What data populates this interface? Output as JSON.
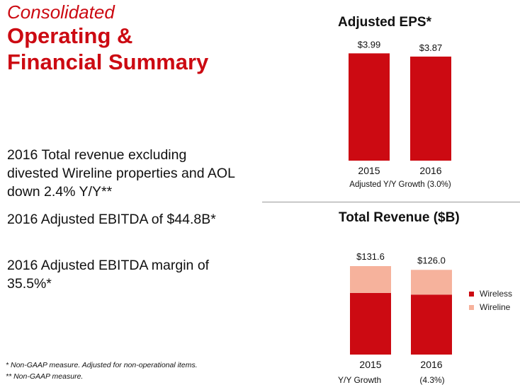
{
  "header": {
    "subtitle": "Consolidated",
    "title_line1": "Operating &",
    "title_line2": "Financial Summary"
  },
  "bullets": [
    "2016 Total revenue excluding divested Wireline properties and AOL down 2.4% Y/Y**",
    "2016 Adjusted EBITDA of $44.8B*",
    "2016 Adjusted EBITDA margin of 35.5%*"
  ],
  "footnotes": [
    "* Non-GAAP measure.  Adjusted for non-operational items.",
    "** Non-GAAP measure."
  ],
  "colors": {
    "brand_red": "#cc0a12",
    "wireless": "#cc0a12",
    "wireline": "#f6b29c"
  },
  "chart_data": [
    {
      "type": "bar",
      "title": "Adjusted EPS*",
      "categories": [
        "2015",
        "2016"
      ],
      "values": [
        3.99,
        3.87
      ],
      "data_labels": [
        "$3.99",
        "$3.87"
      ],
      "ylim": [
        0,
        4.5
      ],
      "footer": "Adjusted Y/Y Growth  (3.0%)"
    },
    {
      "type": "bar",
      "stacked": true,
      "title": "Total Revenue ($B)",
      "categories": [
        "2015",
        "2016"
      ],
      "series": [
        {
          "name": "Wireless",
          "values": [
            91.7,
            89.2
          ]
        },
        {
          "name": "Wireline",
          "values": [
            39.9,
            36.8
          ]
        }
      ],
      "totals": [
        131.6,
        126.0
      ],
      "data_labels": [
        "$131.6",
        "$126.0"
      ],
      "ylim": [
        0,
        180
      ],
      "footer_label": "Y/Y Growth",
      "footer_value": "(4.3%)",
      "legend_position": "right"
    }
  ]
}
